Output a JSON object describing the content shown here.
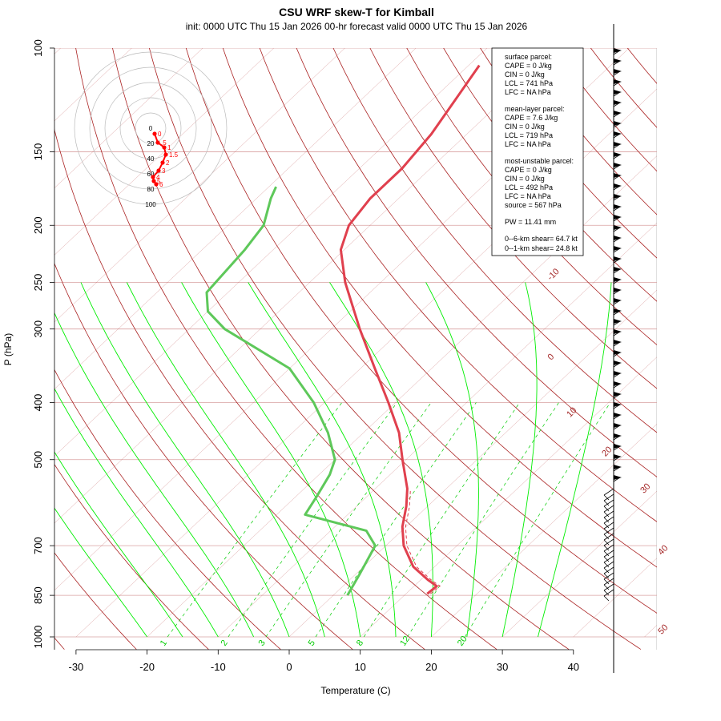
{
  "title": "CSU WRF skew-T for Kimball",
  "subtitle": "init: 0000 UTC Thu 15 Jan 2026     00-hr forecast valid 0000 UTC Thu 15 Jan 2026",
  "colors": {
    "temperature": "#e0404e",
    "dewpoint": "#5ec85a",
    "isotherm": "#aa2222",
    "dry_adiabat": "#aa2222",
    "moist_adiabat": "#00ee00",
    "mixing_ratio": "#00cc00",
    "isobar": "#d9a0a0",
    "hodograph": "#ff0000"
  },
  "chart_data": {
    "type": "line",
    "title": "CSU WRF skew-T for Kimball",
    "xlabel": "Temperature (C)",
    "ylabel": "P (hPa)",
    "x_ticks": [
      "-30",
      "-20",
      "-10",
      "0",
      "10",
      "20",
      "30",
      "40"
    ],
    "y_ticks": [
      "100",
      "150",
      "200",
      "250",
      "300",
      "400",
      "500",
      "700",
      "850",
      "1000"
    ],
    "isotherm_labels": [
      "-10",
      "0",
      "10",
      "20",
      "30",
      "40",
      "50"
    ],
    "mixing_ratio_labels": [
      "1",
      "2",
      "3",
      "5",
      "8",
      "12",
      "20"
    ],
    "series": [
      {
        "name": "temperature",
        "points": [
          {
            "p": 845,
            "t": 13.0
          },
          {
            "p": 820,
            "t": 13.2
          },
          {
            "p": 800,
            "t": 11.0
          },
          {
            "p": 760,
            "t": 7.0
          },
          {
            "p": 700,
            "t": 2.5
          },
          {
            "p": 650,
            "t": -0.5
          },
          {
            "p": 600,
            "t": -3.0
          },
          {
            "p": 560,
            "t": -5.5
          },
          {
            "p": 500,
            "t": -10.5
          },
          {
            "p": 450,
            "t": -15.0
          },
          {
            "p": 400,
            "t": -21.0
          },
          {
            "p": 350,
            "t": -28.0
          },
          {
            "p": 300,
            "t": -36.0
          },
          {
            "p": 250,
            "t": -45.0
          },
          {
            "p": 220,
            "t": -50.5
          },
          {
            "p": 200,
            "t": -53.0
          },
          {
            "p": 180,
            "t": -54.0
          },
          {
            "p": 160,
            "t": -54.0
          },
          {
            "p": 140,
            "t": -55.0
          },
          {
            "p": 120,
            "t": -57.0
          },
          {
            "p": 107,
            "t": -58.5
          }
        ]
      },
      {
        "name": "dewpoint",
        "points": [
          {
            "p": 850,
            "t": 2.0
          },
          {
            "p": 780,
            "t": 0.5
          },
          {
            "p": 700,
            "t": -1.5
          },
          {
            "p": 660,
            "t": -5.0
          },
          {
            "p": 620,
            "t": -16.0
          },
          {
            "p": 580,
            "t": -17.0
          },
          {
            "p": 530,
            "t": -18.5
          },
          {
            "p": 500,
            "t": -20.0
          },
          {
            "p": 450,
            "t": -25.0
          },
          {
            "p": 400,
            "t": -31.5
          },
          {
            "p": 350,
            "t": -40.0
          },
          {
            "p": 300,
            "t": -55.0
          },
          {
            "p": 280,
            "t": -60.0
          },
          {
            "p": 260,
            "t": -63.0
          },
          {
            "p": 220,
            "t": -64.0
          },
          {
            "p": 200,
            "t": -65.0
          },
          {
            "p": 180,
            "t": -68.0
          },
          {
            "p": 172,
            "t": -69.0
          }
        ]
      }
    ],
    "hodograph": {
      "ring_labels": [
        "0",
        "20",
        "40",
        "60",
        "80",
        "100"
      ],
      "height_labels": [
        "0",
        ".5",
        "1",
        "1.5",
        "2",
        "3",
        "4",
        "5",
        "6"
      ]
    },
    "legend": "top-right"
  },
  "info": {
    "surface_header": "surface parcel:",
    "surface_cape": "CAPE = 0 J/kg",
    "surface_cin": "CIN = 0 J/kg",
    "surface_lcl": "LCL = 741 hPa",
    "surface_lfc": "LFC = NA hPa",
    "ml_header": "mean-layer parcel:",
    "ml_cape": "CAPE = 7.6 J/kg",
    "ml_cin": "CIN = 0 J/kg",
    "ml_lcl": "LCL = 719 hPa",
    "ml_lfc": "LFC = NA hPa",
    "mu_header": "most-unstable parcel:",
    "mu_cape": "CAPE = 0 J/kg",
    "mu_cin": "CIN = 0 J/kg",
    "mu_lcl": "LCL = 492 hPa",
    "mu_lfc": "LFC = NA hPa",
    "mu_source": "source = 567 hPa",
    "pw": "PW =  11.41 mm",
    "shear6": "0--6-km shear= 64.7 kt",
    "shear1": "0--1-km shear= 24.8 kt"
  }
}
